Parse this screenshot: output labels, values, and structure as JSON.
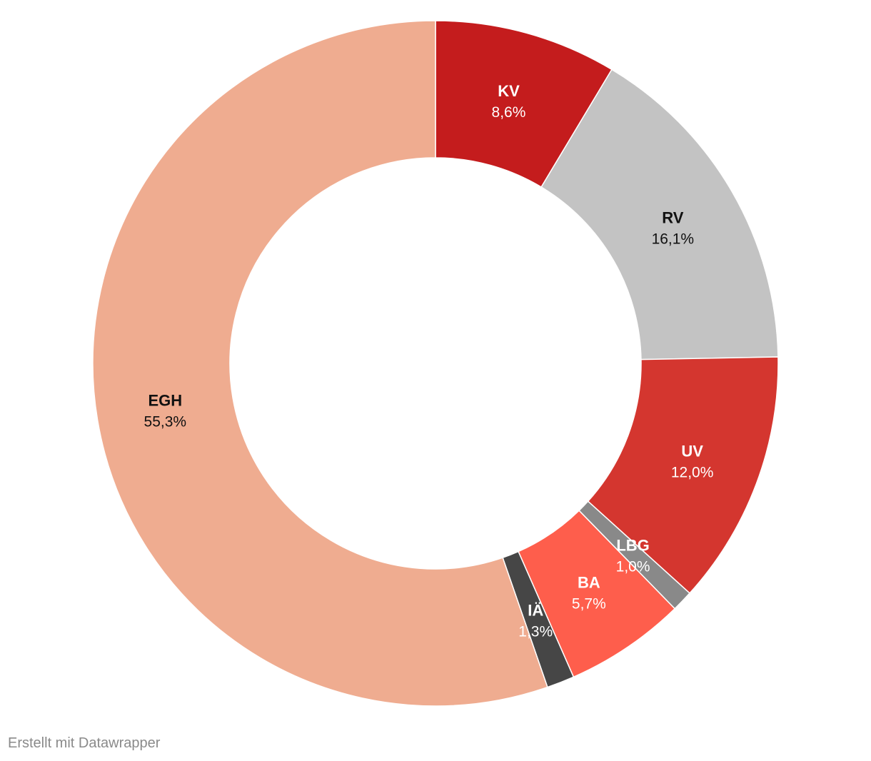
{
  "chart_data": {
    "type": "pie",
    "style": "donut",
    "slices": [
      {
        "label": "KV",
        "value": 8.6,
        "value_label": "8,6%",
        "color": "#c41c1d",
        "text_color": "#ffffff"
      },
      {
        "label": "RV",
        "value": 16.1,
        "value_label": "16,1%",
        "color": "#c3c3c3",
        "text_color": "#111111"
      },
      {
        "label": "UV",
        "value": 12.0,
        "value_label": "12,0%",
        "color": "#d4362f",
        "text_color": "#ffffff"
      },
      {
        "label": "LBG",
        "value": 1.0,
        "value_label": "1,0%",
        "color": "#898989",
        "text_color": "#ffffff"
      },
      {
        "label": "BA",
        "value": 5.7,
        "value_label": "5,7%",
        "color": "#fe5e4c",
        "text_color": "#ffffff"
      },
      {
        "label": "IÄ",
        "value": 1.3,
        "value_label": "1,3%",
        "color": "#464646",
        "text_color": "#ffffff"
      },
      {
        "label": "EGH",
        "value": 55.3,
        "value_label": "55,3%",
        "color": "#efac90",
        "text_color": "#111111"
      }
    ]
  },
  "footer": {
    "credit": "Erstellt mit Datawrapper"
  }
}
